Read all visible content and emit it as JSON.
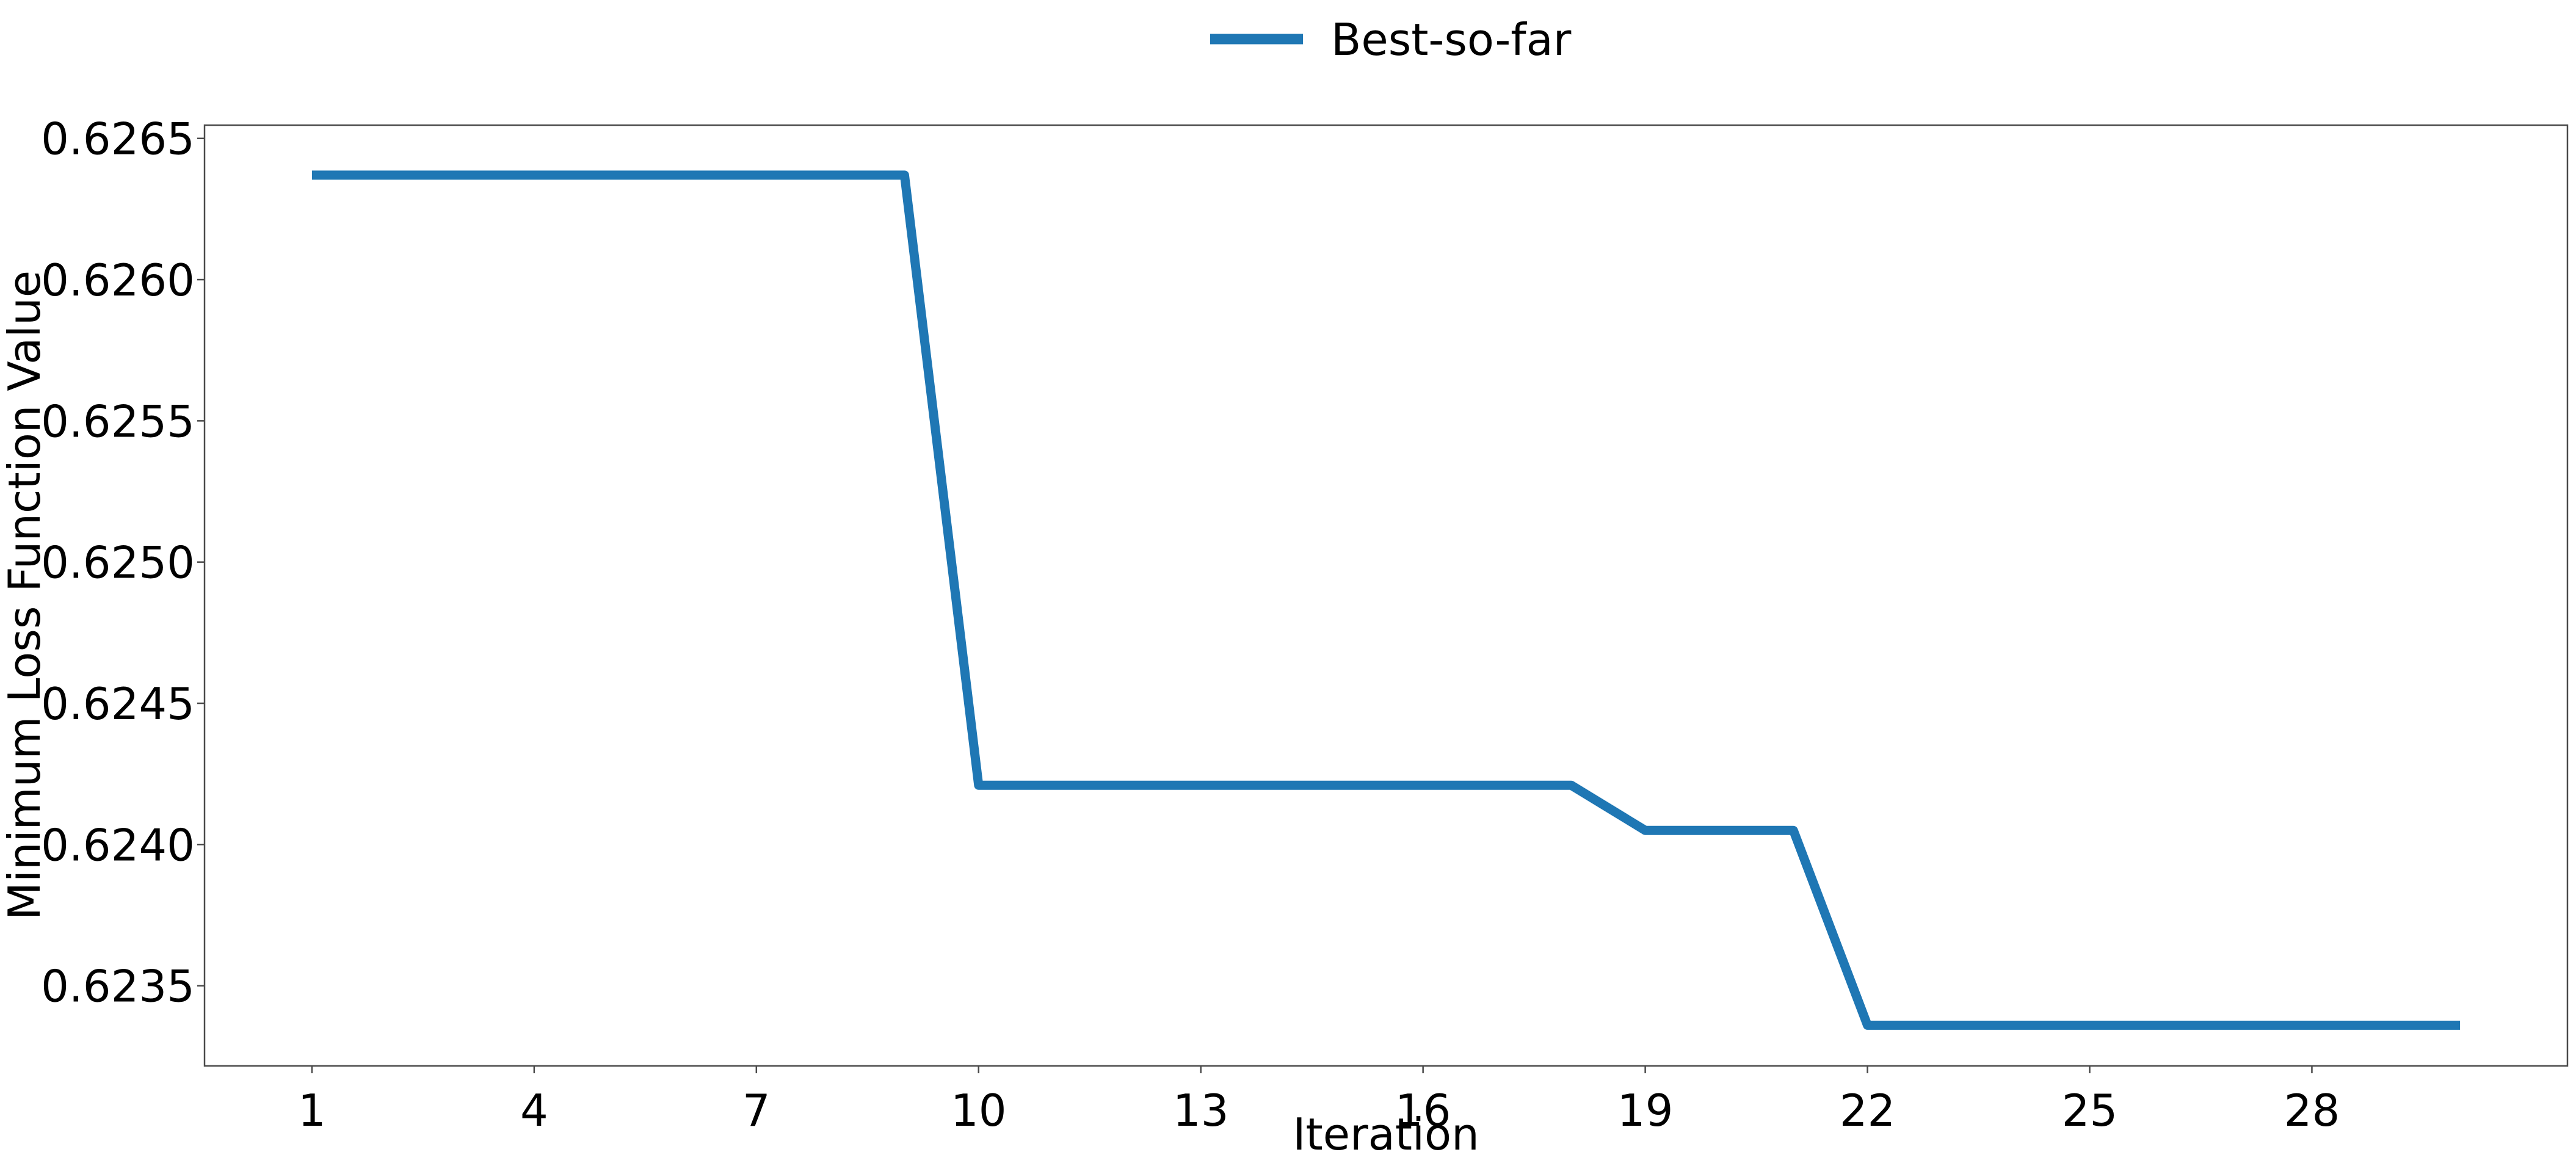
{
  "chart_data": {
    "type": "line",
    "title": "",
    "xlabel": "Iteration",
    "ylabel": "Minimum Loss Function Value",
    "x": [
      1,
      2,
      3,
      4,
      5,
      6,
      7,
      8,
      9,
      10,
      11,
      12,
      13,
      14,
      15,
      16,
      17,
      18,
      19,
      20,
      21,
      22,
      23,
      24,
      25,
      26,
      27,
      28,
      29,
      30
    ],
    "series": [
      {
        "name": "Best-so-far",
        "color": "#1f77b4",
        "values": [
          0.62637,
          0.62637,
          0.62637,
          0.62637,
          0.62637,
          0.62637,
          0.62637,
          0.62637,
          0.62637,
          0.62421,
          0.62421,
          0.62421,
          0.62421,
          0.62421,
          0.62421,
          0.62421,
          0.62421,
          0.62421,
          0.62405,
          0.62405,
          0.62405,
          0.62336,
          0.62336,
          0.62336,
          0.62336,
          0.62336,
          0.62336,
          0.62336,
          0.62336,
          0.62336
        ]
      }
    ],
    "xticks": [
      1,
      4,
      7,
      10,
      13,
      16,
      19,
      22,
      25,
      28
    ],
    "yticks": [
      "0.6235",
      "0.6240",
      "0.6245",
      "0.6250",
      "0.6255",
      "0.6260",
      "0.6265"
    ],
    "xlim": [
      -0.45,
      31.45
    ],
    "ylim": [
      0.623216,
      0.626547
    ],
    "grid": false,
    "legend_position": "top-center"
  }
}
